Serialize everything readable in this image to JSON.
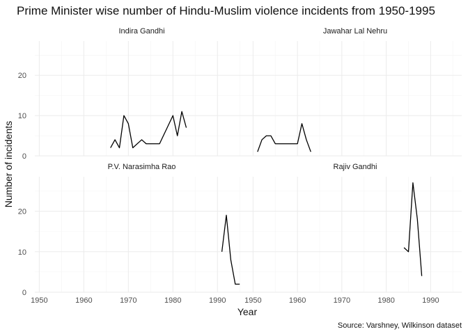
{
  "chart_data": {
    "type": "line",
    "title": "Prime Minister wise number of Hindu-Muslim violence incidents from 1950-1995",
    "xlabel": "Year",
    "ylabel": "Number of incidents",
    "caption": "Source: Varshney, Wilkinson dataset",
    "xlim": [
      1949,
      1997
    ],
    "x_ticks": [
      1950,
      1960,
      1970,
      1980,
      1990
    ],
    "grid": true,
    "panels": [
      {
        "name": "Indira Gandhi",
        "ylim": [
          0,
          28.5
        ],
        "y_ticks": [
          0,
          10,
          20
        ],
        "x": [
          1966,
          1967,
          1968,
          1969,
          1970,
          1971,
          1973,
          1974,
          1975,
          1976,
          1977,
          1980,
          1981,
          1982,
          1983
        ],
        "y": [
          2,
          4,
          2,
          10,
          8,
          2,
          4,
          3,
          3,
          3,
          3,
          10,
          5,
          11,
          7
        ]
      },
      {
        "name": "Jawahar Lal Nehru",
        "ylim": [
          0,
          28.5
        ],
        "y_ticks": [
          0,
          10,
          20
        ],
        "x": [
          1951,
          1952,
          1953,
          1954,
          1955,
          1956,
          1957,
          1958,
          1959,
          1960,
          1961,
          1962,
          1963
        ],
        "y": [
          1,
          4,
          5,
          5,
          3,
          3,
          3,
          3,
          3,
          3,
          8,
          4,
          1
        ]
      },
      {
        "name": "P.V. Narasimha Rao",
        "ylim": [
          0,
          28.5
        ],
        "y_ticks": [
          0,
          10,
          20
        ],
        "x": [
          1991,
          1992,
          1993,
          1994,
          1995
        ],
        "y": [
          10,
          19,
          8,
          2,
          2
        ]
      },
      {
        "name": "Rajiv Gandhi",
        "ylim": [
          0,
          28.5
        ],
        "y_ticks": [
          0,
          10,
          20
        ],
        "x": [
          1984,
          1985,
          1986,
          1987,
          1988
        ],
        "y": [
          11,
          10,
          27,
          18,
          4
        ]
      }
    ]
  }
}
